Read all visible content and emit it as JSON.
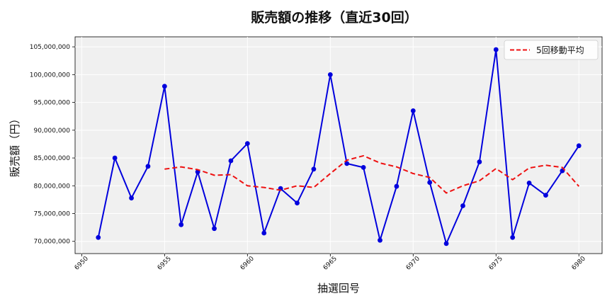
{
  "chart_data": {
    "type": "line",
    "title": "販売額の推移（直近30回）",
    "xlabel": "抽選回号",
    "ylabel": "販売額（円）",
    "x": [
      6951,
      6952,
      6953,
      6954,
      6955,
      6956,
      6957,
      6958,
      6959,
      6960,
      6961,
      6962,
      6963,
      6964,
      6965,
      6966,
      6967,
      6968,
      6969,
      6970,
      6971,
      6972,
      6973,
      6974,
      6975,
      6976,
      6977,
      6978,
      6979,
      6980
    ],
    "xlim": [
      6949.6,
      6981.4
    ],
    "ylim": [
      67800000,
      106800000
    ],
    "x_ticks": [
      6950,
      6955,
      6960,
      6965,
      6970,
      6975,
      6980
    ],
    "x_tick_labels": [
      "6950",
      "6955",
      "6960",
      "6965",
      "6970",
      "6975",
      "6980"
    ],
    "y_ticks": [
      70000000,
      75000000,
      80000000,
      85000000,
      90000000,
      95000000,
      100000000,
      105000000
    ],
    "y_tick_labels": [
      "70,000,000",
      "75,000,000",
      "80,000,000",
      "85,000,000",
      "90,000,000",
      "95,000,000",
      "100,000,000",
      "105,000,000"
    ],
    "grid": true,
    "legend_position": "top-right",
    "series": [
      {
        "values": [
          70700000,
          85000000,
          77800000,
          83500000,
          97900000,
          73000000,
          82500000,
          72300000,
          84500000,
          87600000,
          71500000,
          79500000,
          76900000,
          83000000,
          100000000,
          84000000,
          83300000,
          70200000,
          79900000,
          93500000,
          80600000,
          69600000,
          76400000,
          84300000,
          104500000,
          70700000,
          80500000,
          78300000,
          82700000,
          87200000
        ],
        "color": "#0000dd",
        "style": "solid",
        "marker": "circle"
      },
      {
        "name": "5回移動平均",
        "values": [
          null,
          null,
          null,
          null,
          83000000,
          83400000,
          82900000,
          81900000,
          82000000,
          80000000,
          79700000,
          79200000,
          80000000,
          79700000,
          82200000,
          84600000,
          85400000,
          84100000,
          83400000,
          82200000,
          81500000,
          78700000,
          80000000,
          80900000,
          83100000,
          81100000,
          83200000,
          83700000,
          83300000,
          79900000
        ],
        "color": "#ee1111",
        "style": "dashed",
        "marker": "none"
      }
    ]
  }
}
